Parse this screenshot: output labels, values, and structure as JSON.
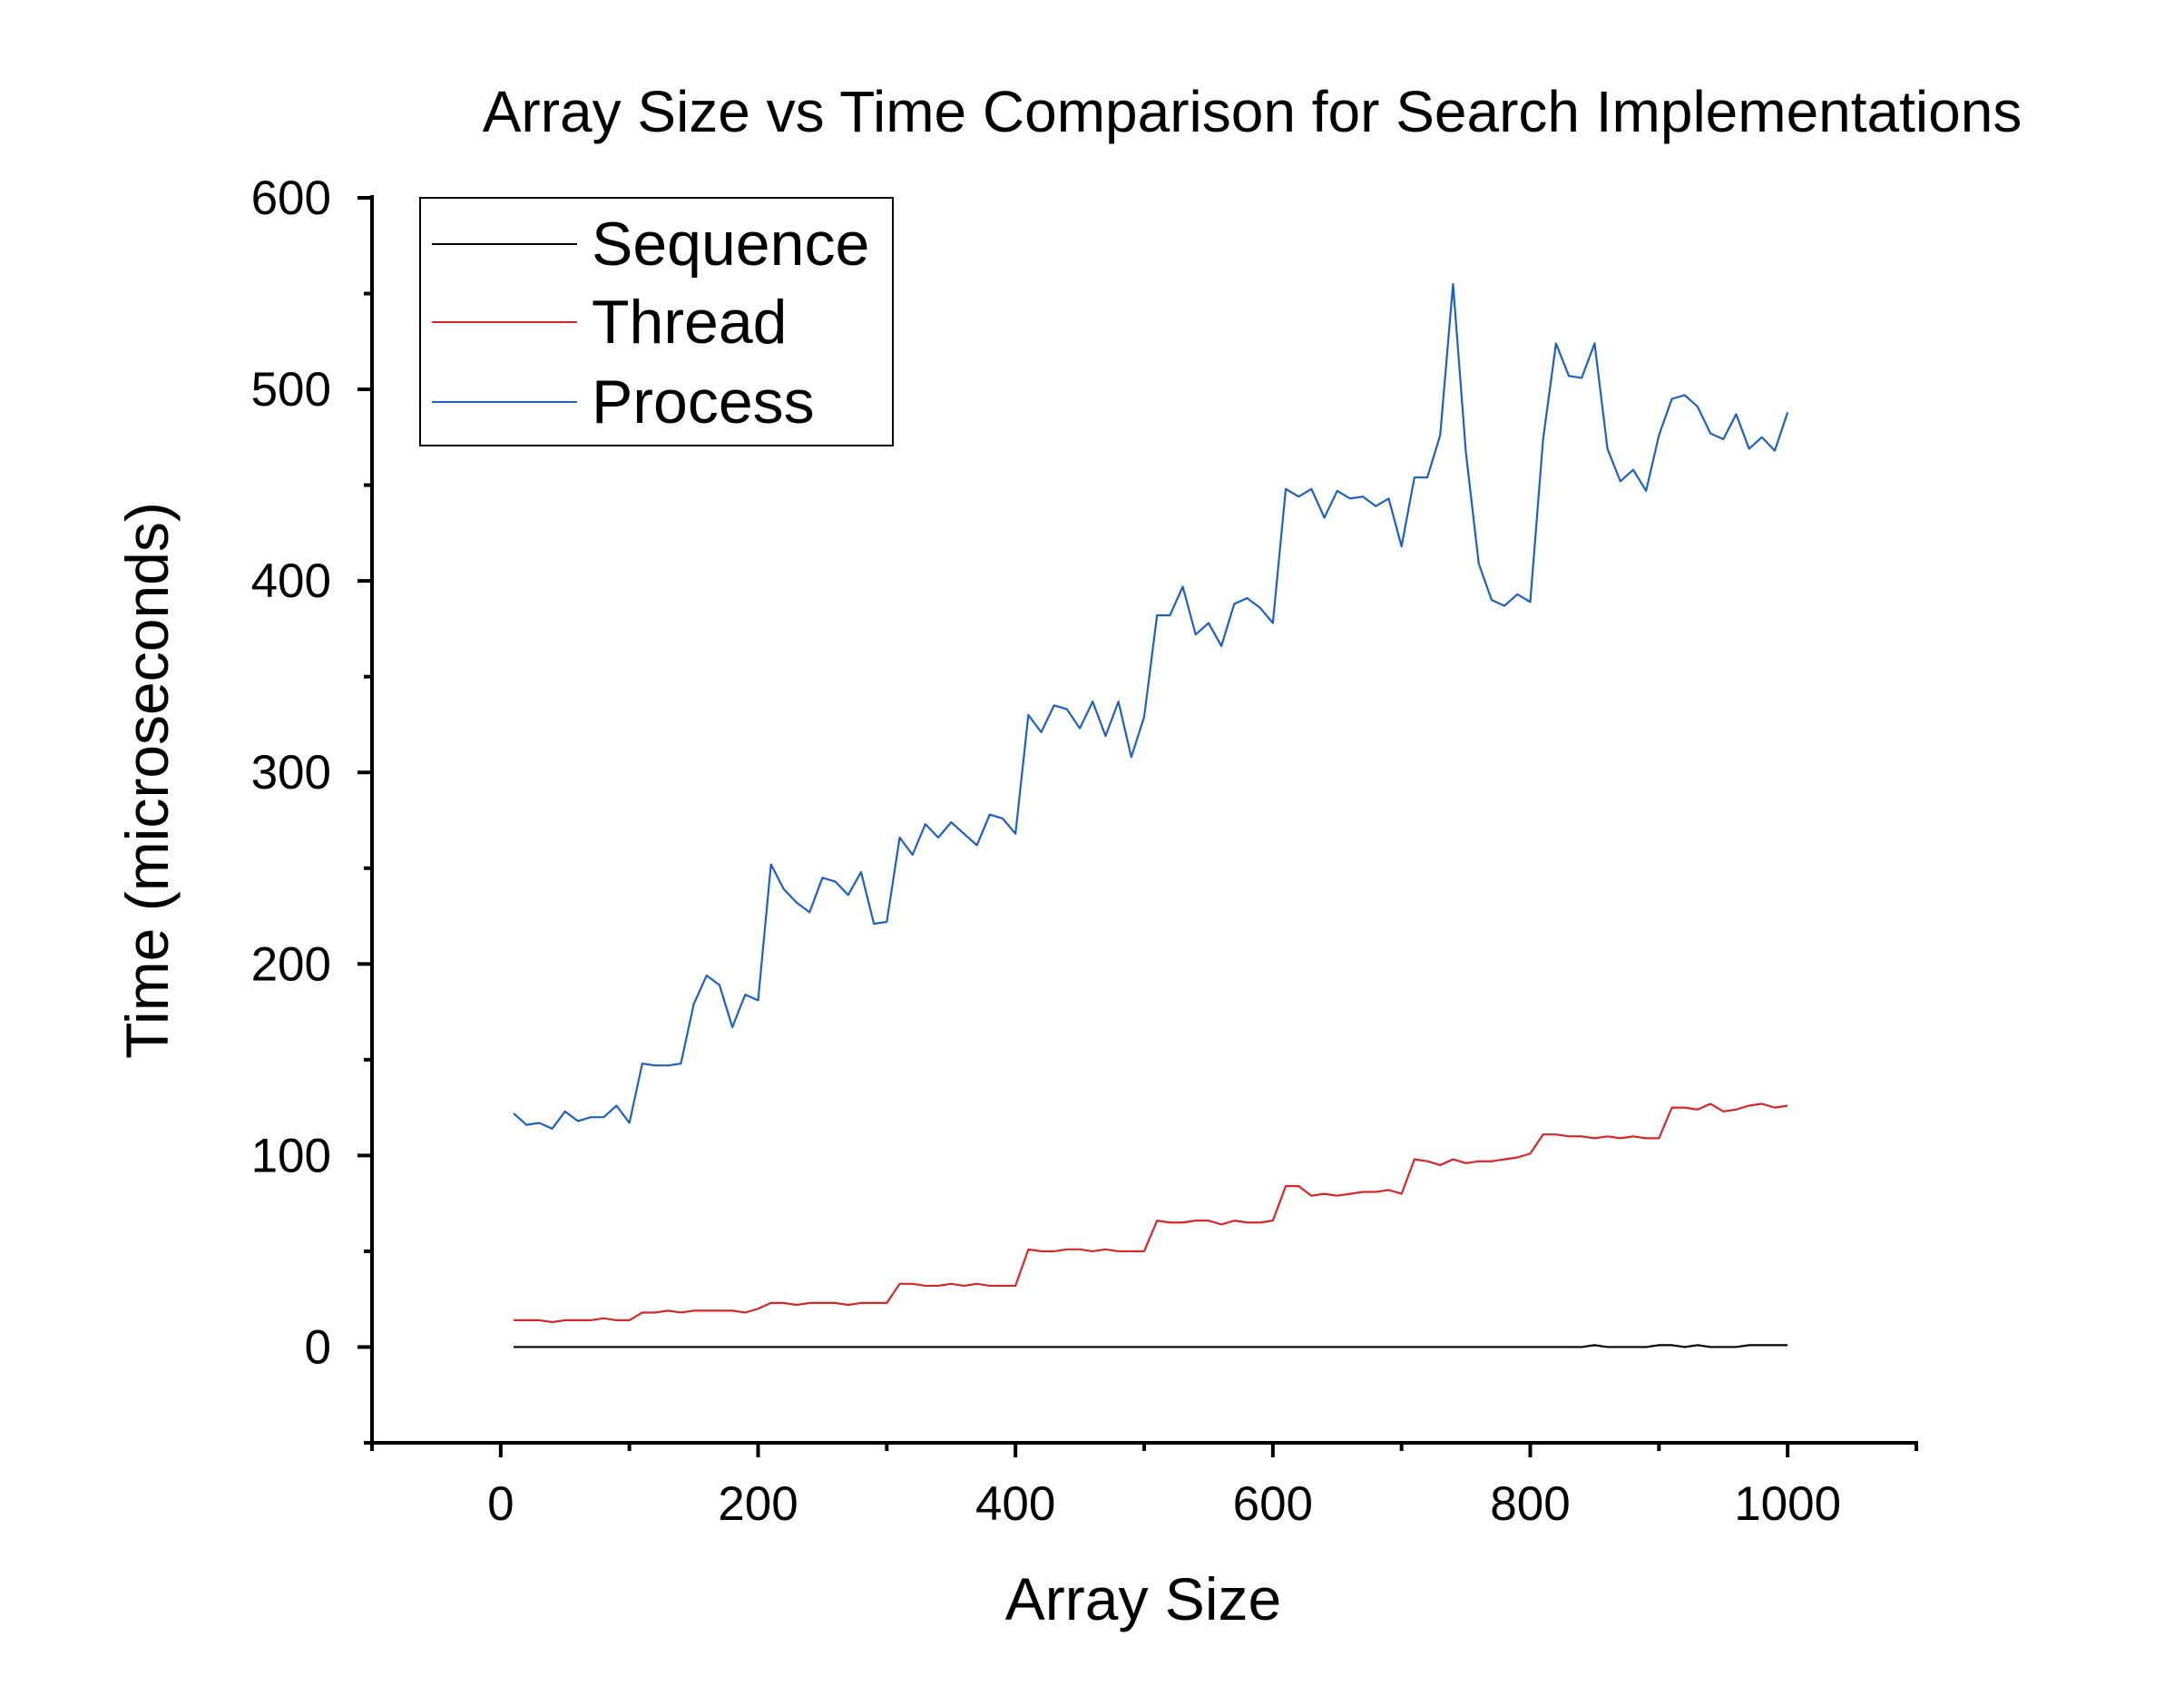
{
  "chart_data": {
    "type": "line",
    "title": "Array Size vs Time Comparison for Search Implementations",
    "xlabel": "Array Size",
    "ylabel": "Time (microseconds)",
    "xlim": [
      -100,
      1100
    ],
    "ylim": [
      -50,
      600
    ],
    "x_ticks": [
      0,
      200,
      400,
      600,
      800,
      1000
    ],
    "y_ticks": [
      0,
      100,
      200,
      300,
      400,
      500,
      600
    ],
    "x_tick_labels": [
      "0",
      "200",
      "400",
      "600",
      "800",
      "1000"
    ],
    "y_tick_labels": [
      "0",
      "100",
      "200",
      "300",
      "400",
      "500",
      "600"
    ],
    "grid": false,
    "legend": {
      "position": "top-left",
      "boxed": true
    },
    "x": [
      10,
      20,
      30,
      40,
      50,
      60,
      70,
      80,
      90,
      100,
      110,
      120,
      130,
      140,
      150,
      160,
      170,
      180,
      190,
      200,
      210,
      220,
      230,
      240,
      250,
      260,
      270,
      280,
      290,
      300,
      310,
      320,
      330,
      340,
      350,
      360,
      370,
      380,
      390,
      400,
      410,
      420,
      430,
      440,
      450,
      460,
      470,
      480,
      490,
      500,
      510,
      520,
      530,
      540,
      550,
      560,
      570,
      580,
      590,
      600,
      610,
      620,
      630,
      640,
      650,
      660,
      670,
      680,
      690,
      700,
      710,
      720,
      730,
      740,
      750,
      760,
      770,
      780,
      790,
      800,
      810,
      820,
      830,
      840,
      850,
      860,
      870,
      880,
      890,
      900,
      910,
      920,
      930,
      940,
      950,
      960,
      970,
      980,
      990,
      1000
    ],
    "series": [
      {
        "name": "Sequence",
        "color": "#000000",
        "values": [
          0,
          0,
          0,
          0,
          0,
          0,
          0,
          0,
          0,
          0,
          0,
          0,
          0,
          0,
          0,
          0,
          0,
          0,
          0,
          0,
          0,
          0,
          0,
          0,
          0,
          0,
          0,
          0,
          0,
          0,
          0,
          0,
          0,
          0,
          0,
          0,
          0,
          0,
          0,
          0,
          0,
          0,
          0,
          0,
          0,
          0,
          0,
          0,
          0,
          0,
          0,
          0,
          0,
          0,
          0,
          0,
          0,
          0,
          0,
          0,
          0,
          0,
          0,
          0,
          0,
          0,
          0,
          0,
          0,
          0,
          0,
          0,
          0,
          0,
          0,
          0,
          0,
          0,
          0,
          0,
          0,
          0,
          0,
          0,
          1,
          0,
          0,
          0,
          0,
          1,
          1,
          0,
          1,
          0,
          0,
          0,
          1,
          1,
          1,
          1
        ]
      },
      {
        "name": "Thread",
        "color": "#d62728",
        "values": [
          14,
          14,
          14,
          13,
          14,
          14,
          14,
          15,
          14,
          14,
          18,
          18,
          19,
          18,
          19,
          19,
          19,
          19,
          18,
          20,
          23,
          23,
          22,
          23,
          23,
          23,
          22,
          23,
          23,
          23,
          33,
          33,
          32,
          32,
          33,
          32,
          33,
          32,
          32,
          32,
          51,
          50,
          50,
          51,
          51,
          50,
          51,
          50,
          50,
          50,
          66,
          65,
          65,
          66,
          66,
          64,
          66,
          65,
          65,
          66,
          84,
          84,
          79,
          80,
          79,
          80,
          81,
          81,
          82,
          80,
          98,
          97,
          95,
          98,
          96,
          97,
          97,
          98,
          99,
          101,
          111,
          111,
          110,
          110,
          109,
          110,
          109,
          110,
          109,
          109,
          125,
          125,
          124,
          127,
          123,
          124,
          126,
          127,
          125,
          126
        ]
      },
      {
        "name": "Process",
        "color": "#1f5fbf",
        "values": [
          122,
          116,
          117,
          114,
          123,
          118,
          120,
          120,
          126,
          117,
          148,
          147,
          147,
          148,
          179,
          194,
          189,
          167,
          184,
          181,
          252,
          239,
          232,
          227,
          245,
          243,
          236,
          248,
          221,
          222,
          266,
          257,
          273,
          266,
          274,
          268,
          262,
          278,
          276,
          268,
          330,
          321,
          335,
          333,
          323,
          337,
          319,
          337,
          308,
          329,
          382,
          382,
          397,
          372,
          378,
          366,
          388,
          391,
          386,
          378,
          448,
          444,
          448,
          433,
          447,
          443,
          444,
          439,
          443,
          418,
          454,
          454,
          476,
          555,
          467,
          409,
          390,
          387,
          393,
          389,
          474,
          524,
          507,
          506,
          524,
          469,
          452,
          458,
          447,
          476,
          495,
          497,
          491,
          477,
          474,
          487,
          469,
          475,
          468,
          488
        ]
      }
    ]
  }
}
